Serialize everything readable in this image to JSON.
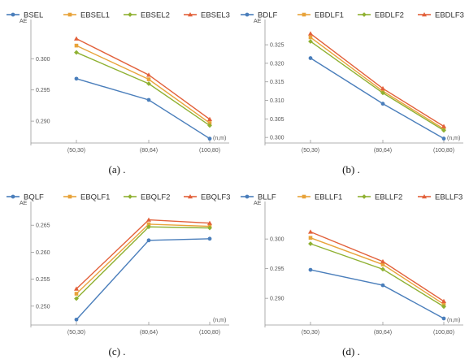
{
  "colors": {
    "series": [
      "#4a7ebb",
      "#e8a33a",
      "#8fb132",
      "#e2603a"
    ],
    "axis": "#999999"
  },
  "chart_data": [
    {
      "type": "line",
      "caption": "(a) .",
      "ylabel": "AE",
      "xlabel": "(n,m)",
      "categories": [
        "(50,30)",
        "(80,64)",
        "(100,80)"
      ],
      "yticks": [
        "0.290",
        "0.295",
        "0.300"
      ],
      "ylim": [
        0.2865,
        0.3055
      ],
      "series": [
        {
          "name": "BSEL",
          "values": [
            0.2968,
            0.2934,
            0.2872
          ]
        },
        {
          "name": "EBSEL1",
          "values": [
            0.3021,
            0.2967,
            0.2897
          ]
        },
        {
          "name": "EBSEL2",
          "values": [
            0.301,
            0.296,
            0.2893
          ]
        },
        {
          "name": "EBSEL3",
          "values": [
            0.3032,
            0.2974,
            0.2903
          ]
        }
      ]
    },
    {
      "type": "line",
      "caption": "(b) .",
      "ylabel": "AE",
      "xlabel": "(n,m)",
      "categories": [
        "(50,30)",
        "(80,64)",
        "(100,80)"
      ],
      "yticks": [
        "0.300",
        "0.305",
        "0.310",
        "0.315",
        "0.320",
        "0.325"
      ],
      "ylim": [
        0.2985,
        0.3305
      ],
      "series": [
        {
          "name": "BDLF",
          "values": [
            0.3214,
            0.3091,
            0.2997
          ]
        },
        {
          "name": "EBDLF1",
          "values": [
            0.327,
            0.3125,
            0.3023
          ]
        },
        {
          "name": "EBDLF2",
          "values": [
            0.3259,
            0.312,
            0.3019
          ]
        },
        {
          "name": "EBDLF3",
          "values": [
            0.328,
            0.3132,
            0.303
          ]
        }
      ]
    },
    {
      "type": "line",
      "caption": "(c) .",
      "ylabel": "AE",
      "xlabel": "(n,m)",
      "categories": [
        "(50,30)",
        "(80,64)",
        "(100,80)"
      ],
      "yticks": [
        "0.250",
        "0.255",
        "0.260",
        "0.265"
      ],
      "ylim": [
        0.2465,
        0.2685
      ],
      "series": [
        {
          "name": "BQLF",
          "values": [
            0.2475,
            0.2622,
            0.2625
          ]
        },
        {
          "name": "EBQLF1",
          "values": [
            0.2523,
            0.2652,
            0.2648
          ]
        },
        {
          "name": "EBQLF2",
          "values": [
            0.2514,
            0.2647,
            0.2645
          ]
        },
        {
          "name": "EBQLF3",
          "values": [
            0.2532,
            0.266,
            0.2654
          ]
        }
      ]
    },
    {
      "type": "line",
      "caption": "(d) .",
      "ylabel": "AE",
      "xlabel": "(n,m)",
      "categories": [
        "(50,30)",
        "(80,64)",
        "(100,80)"
      ],
      "yticks": [
        "0.290",
        "0.295",
        "0.300"
      ],
      "ylim": [
        0.2855,
        0.3055
      ],
      "series": [
        {
          "name": "BLLF",
          "values": [
            0.2948,
            0.2922,
            0.2866
          ]
        },
        {
          "name": "EBLLF1",
          "values": [
            0.3002,
            0.2957,
            0.289
          ]
        },
        {
          "name": "EBLLF2",
          "values": [
            0.2992,
            0.2949,
            0.2886
          ]
        },
        {
          "name": "EBLLF3",
          "values": [
            0.3012,
            0.2962,
            0.2895
          ]
        }
      ]
    }
  ]
}
